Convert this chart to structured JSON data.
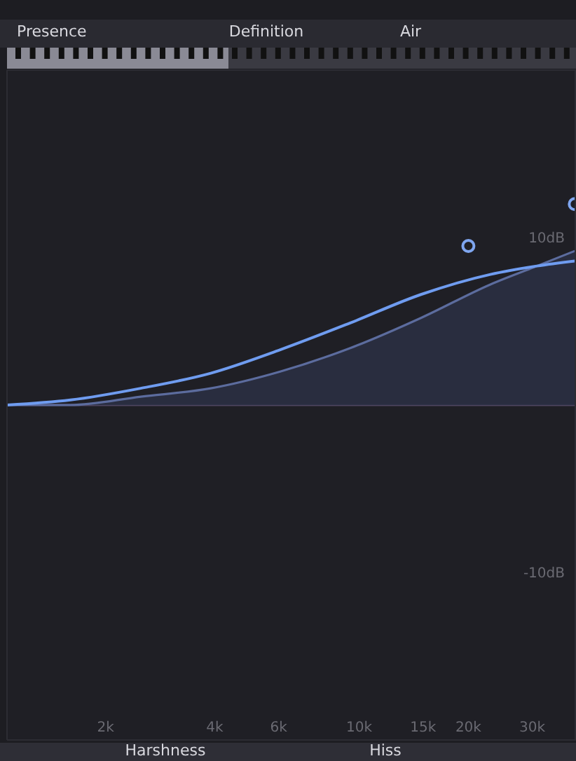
{
  "chart_data": {
    "type": "line",
    "log": "x",
    "xlim": [
      1070,
      39600
    ],
    "ylim": [
      -20,
      20
    ],
    "xticks": [
      {
        "value": 2000,
        "label": "2k"
      },
      {
        "value": 4000,
        "label": "4k"
      },
      {
        "value": 6000,
        "label": "6k"
      },
      {
        "value": 10000,
        "label": "10k"
      },
      {
        "value": 15000,
        "label": "15k"
      },
      {
        "value": 20000,
        "label": "20k"
      },
      {
        "value": 30000,
        "label": "30k"
      }
    ],
    "yticks": [
      {
        "value": 10,
        "label": "10dB"
      },
      {
        "value": -10,
        "label": "-10dB"
      }
    ],
    "grid": false,
    "annotations": [
      "Presence",
      "Definition",
      "Air",
      "Harshness",
      "Hiss"
    ],
    "ref_lines": [
      {
        "axis": "y",
        "value": 0,
        "color": "#4e4560"
      }
    ],
    "series": [
      {
        "type": "area",
        "color": "#5c6c9e",
        "x": [
          1070,
          1600,
          2500,
          3900,
          6060,
          9450,
          14800,
          23000,
          30900,
          39300
        ],
        "values": [
          0,
          0,
          0.5,
          1.0,
          2.0,
          3.4,
          5.2,
          7.2,
          8.3,
          9.2
        ]
      },
      {
        "color": "#6f9cf0",
        "x": [
          1070,
          1600,
          2500,
          3900,
          6060,
          9450,
          14800,
          23000,
          30900,
          39300
        ],
        "values": [
          0,
          0.3,
          1.0,
          1.9,
          3.3,
          4.9,
          6.6,
          7.8,
          8.3,
          8.6
        ]
      },
      {
        "type": "scatter",
        "color": "#7fa6f0",
        "marker": "circle",
        "x": [
          20000,
          39300
        ],
        "values": [
          9.5,
          12
        ]
      }
    ]
  }
}
